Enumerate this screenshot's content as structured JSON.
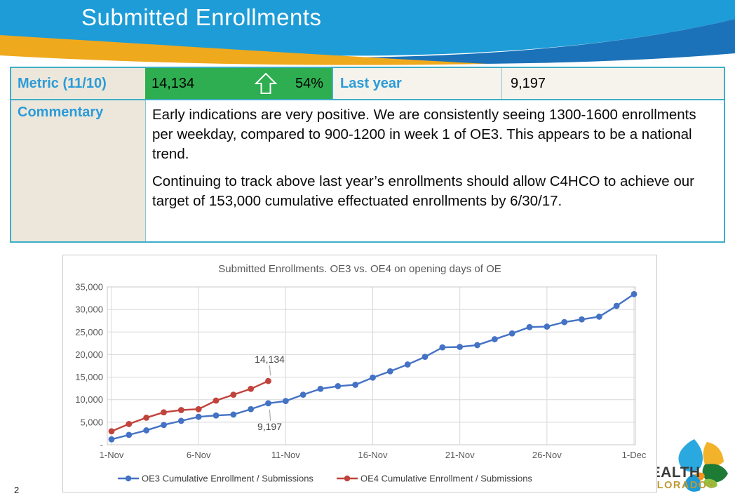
{
  "slide": {
    "page_number": "2"
  },
  "header": {
    "title": "Submitted Enrollments",
    "bg_color": "#1E9CD7",
    "swoosh_dark_color": "#1B72B8",
    "swoosh_gold_color": "#EFA91D"
  },
  "metric_table": {
    "metric_label": "Metric (11/10)",
    "metric_value": "14,134",
    "metric_change_pct": "54%",
    "metric_trend_icon": "up-arrow",
    "metric_value_bg": "#2EAE50",
    "last_year_label": "Last year",
    "last_year_value": "9,197",
    "commentary_label": "Commentary",
    "commentary_paragraphs": [
      "Early indications are very positive.  We are consistently seeing 1300-1600 enrollments per weekday, compared to 900-1200 in week 1 of OE3. This appears to be a national trend.",
      "Continuing to track above last year’s enrollments should allow C4HCO to achieve our target of 153,000 cumulative effectuated enrollments by 6/30/17."
    ]
  },
  "chart_data": {
    "type": "line",
    "title": "Submitted Enrollments. OE3 vs. OE4 on opening days of OE",
    "xlabel": "",
    "ylabel": "",
    "ylim": [
      0,
      35000
    ],
    "y_step": 5000,
    "y_tick_labels": [
      "35,000",
      "30,000",
      "25,000",
      "20,000",
      "15,000",
      "10,000",
      "5,000",
      "-"
    ],
    "x_tick_labels": [
      "1-Nov",
      "6-Nov",
      "11-Nov",
      "16-Nov",
      "21-Nov",
      "26-Nov",
      "1-Dec"
    ],
    "x_tick_days": [
      1,
      6,
      11,
      16,
      21,
      26,
      31
    ],
    "x_range_days": [
      1,
      31
    ],
    "grid": true,
    "legend_position": "bottom",
    "axis_text_color": "#595959",
    "grid_color": "#D8D8D8",
    "series": [
      {
        "name": "OE3 Cumulative Enrollment / Submissions",
        "color": "#4472C4",
        "start_day": 1,
        "values": [
          1200,
          2200,
          3200,
          4400,
          5300,
          6200,
          6500,
          6700,
          7900,
          9197,
          9700,
          11100,
          12400,
          13000,
          13300,
          14900,
          16300,
          17800,
          19500,
          21600,
          21700,
          22100,
          23400,
          24700,
          26100,
          26200,
          27200,
          27800,
          28400,
          30800,
          33400
        ]
      },
      {
        "name": "OE4 Cumulative Enrollment / Submissions",
        "color": "#C0433C",
        "start_day": 1,
        "values": [
          3000,
          4600,
          6000,
          7200,
          7700,
          7900,
          9800,
          11100,
          12400,
          14134
        ]
      }
    ],
    "annotations": [
      {
        "text": "14,134",
        "day": 10,
        "value": 14134,
        "placement": "above"
      },
      {
        "text": "9,197",
        "day": 10,
        "value": 9197,
        "placement": "below"
      }
    ]
  },
  "logo": {
    "line1": "HEALTH",
    "line2": "COLORADO®"
  }
}
